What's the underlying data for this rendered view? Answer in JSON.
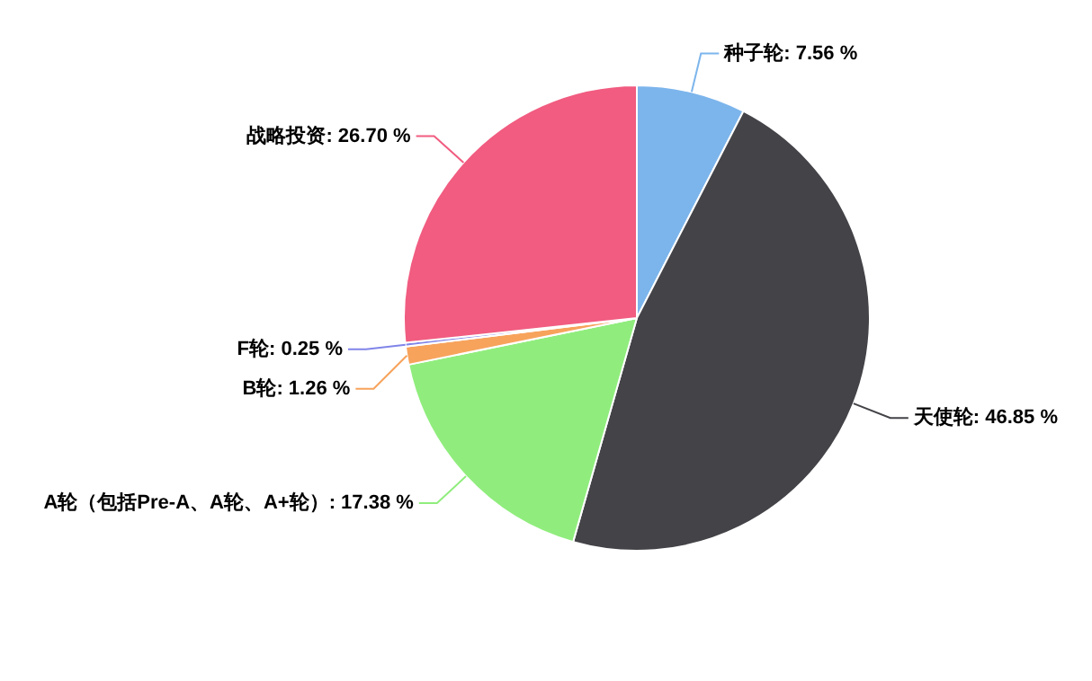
{
  "chart_data": {
    "type": "pie",
    "categories": [
      "种子轮",
      "天使轮",
      "A轮（包括Pre-A、A轮、A+轮）",
      "B轮",
      "F轮",
      "战略投资"
    ],
    "values": [
      7.56,
      46.85,
      17.38,
      1.26,
      0.25,
      26.7
    ],
    "colors": [
      "#7cb5ec",
      "#434348",
      "#90ed7d",
      "#f7a35c",
      "#8085e9",
      "#f15c80"
    ],
    "value_labels": [
      "7.56 %",
      "46.85 %",
      "17.38 %",
      "1.26 %",
      "0.25 %",
      "26.70 %"
    ],
    "legend": false
  }
}
